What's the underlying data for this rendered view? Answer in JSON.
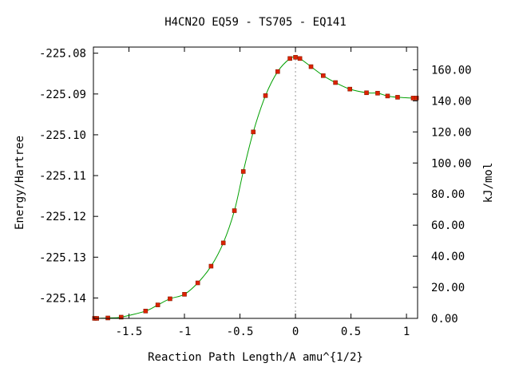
{
  "chart_data": {
    "type": "line",
    "title": "H4CN2O   EQ59 - TS705 - EQ141",
    "xlabel": "Reaction Path Length/A amu^{1/2}",
    "ylabel": "Energy/Hartree",
    "y2label": "kJ/mol",
    "xlim": [
      -1.82,
      1.1
    ],
    "ylim": [
      -225.145,
      -225.0785
    ],
    "y2lim": [
      0,
      174.6
    ],
    "x_ticks": [
      -1.5,
      -1,
      -0.5,
      0,
      0.5,
      1
    ],
    "x_tick_labels": [
      "-1.5",
      "-1",
      "-0.5",
      "0",
      "0.5",
      "1"
    ],
    "y_ticks": [
      -225.08,
      -225.09,
      -225.1,
      -225.11,
      -225.12,
      -225.13,
      -225.14
    ],
    "y_tick_labels": [
      "-225.08",
      "-225.09",
      "-225.10",
      "-225.11",
      "-225.12",
      "-225.13",
      "-225.14"
    ],
    "y2_ticks": [
      0,
      20,
      40,
      60,
      80,
      100,
      120,
      140,
      160
    ],
    "y2_tick_labels": [
      "0.00",
      "20.00",
      "40.00",
      "60.00",
      "80.00",
      "100.00",
      "120.00",
      "140.00",
      "160.00"
    ],
    "ts_x": 0,
    "grid": false,
    "colors": {
      "curve": "#00a000",
      "points": "#dd2200",
      "ts_line": "#999999"
    },
    "series": [
      {
        "x": [
          -1.81,
          -1.79,
          -1.69,
          -1.57,
          -1.35,
          -1.24,
          -1.13,
          -1.0,
          -0.88,
          -0.76,
          -0.65,
          -0.55,
          -0.47,
          -0.38,
          -0.27,
          -0.16,
          -0.05,
          0.0,
          0.04,
          0.14,
          0.25,
          0.36,
          0.49,
          0.64,
          0.74,
          0.83,
          0.92,
          1.06,
          1.09
        ],
        "y": [
          -225.145,
          -225.145,
          -225.1449,
          -225.1447,
          -225.1432,
          -225.1417,
          -225.1402,
          -225.1391,
          -225.1363,
          -225.1322,
          -225.1265,
          -225.1186,
          -225.109,
          -225.0993,
          -225.0904,
          -225.0845,
          -225.0813,
          -225.081,
          -225.0813,
          -225.0833,
          -225.0855,
          -225.0872,
          -225.0888,
          -225.0897,
          -225.0898,
          -225.0905,
          -225.0908,
          -225.091,
          -225.091
        ]
      }
    ]
  }
}
